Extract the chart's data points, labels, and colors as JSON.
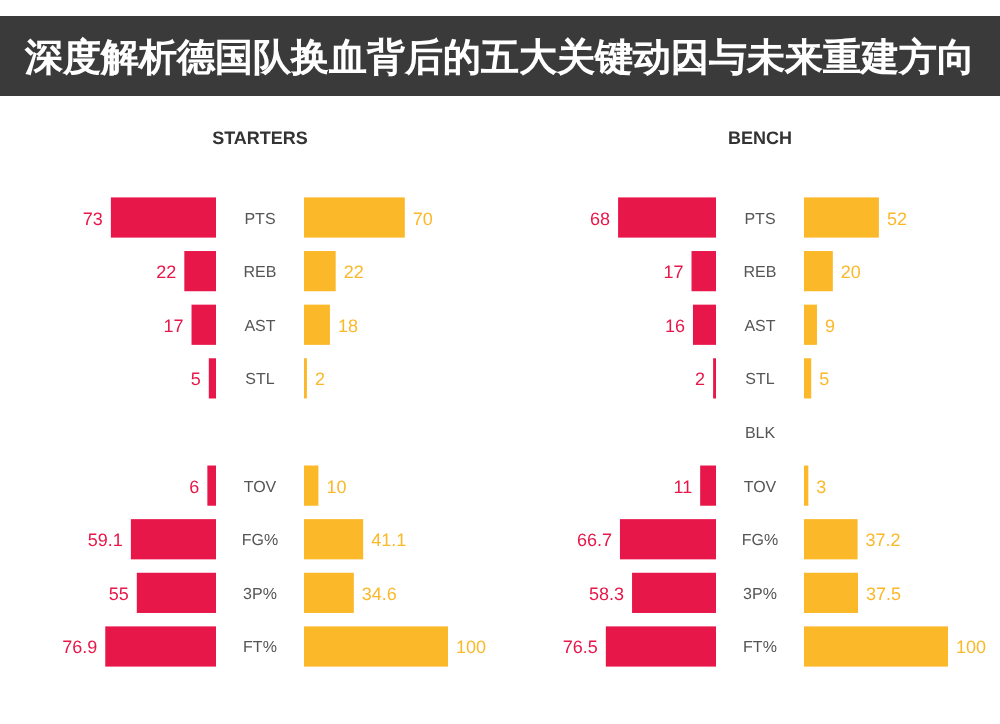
{
  "chart_data": [
    {
      "type": "bar",
      "orientation": "horizontal",
      "title": "STARTERS",
      "data_labels": true,
      "annotations": [
        "深度解析德国队换血背后的五大关键动因与未来重建方向"
      ],
      "categories": [
        "PTS",
        "REB",
        "AST",
        "STL",
        null,
        "TOV",
        "FG%",
        "3P%",
        "FT%"
      ],
      "series": [
        {
          "color": "#e8174a",
          "values": [
            73,
            22,
            17,
            5,
            null,
            6,
            59.1,
            55.0,
            76.9
          ]
        }
      ]
    },
    {
      "type": "bar",
      "orientation": "horizontal",
      "data_labels": true,
      "categories": [
        null,
        null,
        null,
        null,
        null,
        null,
        null,
        null,
        null
      ],
      "series": [
        {
          "color": "#fbb829",
          "values": [
            70,
            22,
            18,
            2,
            null,
            10,
            41.1,
            34.6,
            100
          ]
        }
      ]
    },
    {
      "type": "bar",
      "orientation": "horizontal",
      "title": "BENCH",
      "data_labels": true,
      "categories": [
        "PTS",
        "REB",
        "AST",
        "STL",
        "BLK",
        "TOV",
        "FG%",
        "3P%",
        "FT%"
      ],
      "series": [
        {
          "color": "#e8174a",
          "values": [
            68,
            17,
            16,
            2,
            null,
            11,
            66.7,
            58.3,
            76.5
          ]
        }
      ]
    },
    {
      "type": "bar",
      "orientation": "horizontal",
      "data_labels": true,
      "categories": [
        null,
        null,
        null,
        null,
        null,
        null,
        null,
        null,
        null
      ],
      "series": [
        {
          "color": "#fbb829",
          "values": [
            52,
            20,
            9,
            5,
            null,
            3,
            37.2,
            37.5,
            100
          ]
        }
      ]
    }
  ]
}
